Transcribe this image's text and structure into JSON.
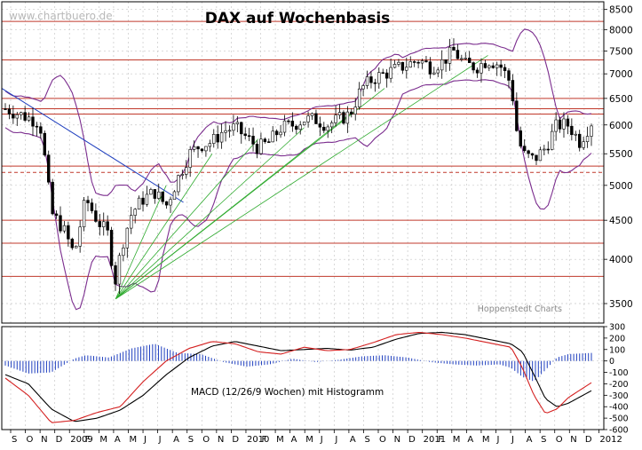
{
  "chart_data": [
    {
      "type": "candlestick",
      "title": "DAX auf Wochenbasis",
      "watermark": "www.chartbuero.de",
      "credit": "Hoppenstedt Charts",
      "y_scale": "log",
      "ylim": [
        3300,
        8700
      ],
      "y_ticks": [
        3500,
        4000,
        4500,
        5000,
        5500,
        6000,
        6500,
        7000,
        7500,
        8000,
        8500
      ],
      "x_labels": [
        "S",
        "O",
        "N",
        "D",
        "2009",
        "F",
        "M",
        "A",
        "M",
        "J",
        "J",
        "A",
        "S",
        "O",
        "N",
        "D",
        "2010",
        "F",
        "M",
        "A",
        "M",
        "J",
        "J",
        "A",
        "S",
        "O",
        "N",
        "D",
        "2011",
        "F",
        "M",
        "A",
        "M",
        "J",
        "J",
        "A",
        "S",
        "O",
        "N",
        "D",
        "2012"
      ],
      "price_anchors": [
        {
          "x": 0,
          "v": 6300
        },
        {
          "x": 3,
          "v": 6050
        },
        {
          "x": 4,
          "v": 4600
        },
        {
          "x": 5,
          "v": 4400
        },
        {
          "x": 6,
          "v": 4050
        },
        {
          "x": 7,
          "v": 4800
        },
        {
          "x": 8,
          "v": 4500
        },
        {
          "x": 9,
          "v": 4300
        },
        {
          "x": 9.5,
          "v": 3700
        },
        {
          "x": 10.2,
          "v": 4200
        },
        {
          "x": 11,
          "v": 4600
        },
        {
          "x": 12,
          "v": 4800
        },
        {
          "x": 13,
          "v": 4900
        },
        {
          "x": 14,
          "v": 4700
        },
        {
          "x": 15,
          "v": 5100
        },
        {
          "x": 16,
          "v": 5500
        },
        {
          "x": 17,
          "v": 5650
        },
        {
          "x": 18,
          "v": 5700
        },
        {
          "x": 19,
          "v": 5900
        },
        {
          "x": 20,
          "v": 5950
        },
        {
          "x": 22,
          "v": 5600
        },
        {
          "x": 23,
          "v": 5700
        },
        {
          "x": 24,
          "v": 5950
        },
        {
          "x": 25,
          "v": 6000
        },
        {
          "x": 26,
          "v": 6100
        },
        {
          "x": 27,
          "v": 6100
        },
        {
          "x": 28,
          "v": 6000
        },
        {
          "x": 29,
          "v": 6100
        },
        {
          "x": 30,
          "v": 6200
        },
        {
          "x": 31,
          "v": 6700
        },
        {
          "x": 32,
          "v": 6900
        },
        {
          "x": 33,
          "v": 7000
        },
        {
          "x": 34,
          "v": 7100
        },
        {
          "x": 35,
          "v": 7200
        },
        {
          "x": 36,
          "v": 7300
        },
        {
          "x": 37,
          "v": 7150
        },
        {
          "x": 38,
          "v": 7250
        },
        {
          "x": 39,
          "v": 7500
        },
        {
          "x": 40,
          "v": 7200
        },
        {
          "x": 41,
          "v": 7150
        },
        {
          "x": 42,
          "v": 7300
        },
        {
          "x": 43,
          "v": 7200
        },
        {
          "x": 44,
          "v": 6800
        },
        {
          "x": 44.5,
          "v": 5900
        },
        {
          "x": 45,
          "v": 5500
        },
        {
          "x": 46,
          "v": 5400
        },
        {
          "x": 47,
          "v": 5600
        },
        {
          "x": 48,
          "v": 6000
        },
        {
          "x": 49,
          "v": 6000
        },
        {
          "x": 50,
          "v": 5700
        },
        {
          "x": 51,
          "v": 6050
        }
      ],
      "horizontal_levels_solid": [
        8200,
        7300,
        6500,
        6300,
        6200,
        5300,
        4500,
        4200,
        3800
      ],
      "horizontal_levels_dashed": [
        5200
      ]
    },
    {
      "type": "line",
      "title": "MACD (12/26/9 Wochen) mit Histogramm",
      "ylim": [
        -600,
        300
      ],
      "y_ticks": [
        300,
        200,
        100,
        0,
        -100,
        -200,
        -300,
        -400,
        -500,
        -600
      ],
      "macd_anchors": [
        {
          "x": 0,
          "v": -150
        },
        {
          "x": 2,
          "v": -300
        },
        {
          "x": 4,
          "v": -540
        },
        {
          "x": 6,
          "v": -520
        },
        {
          "x": 8,
          "v": -450
        },
        {
          "x": 10,
          "v": -400
        },
        {
          "x": 12,
          "v": -180
        },
        {
          "x": 14,
          "v": 0
        },
        {
          "x": 16,
          "v": 110
        },
        {
          "x": 18,
          "v": 170
        },
        {
          "x": 20,
          "v": 150
        },
        {
          "x": 22,
          "v": 80
        },
        {
          "x": 24,
          "v": 60
        },
        {
          "x": 26,
          "v": 120
        },
        {
          "x": 28,
          "v": 90
        },
        {
          "x": 30,
          "v": 100
        },
        {
          "x": 32,
          "v": 160
        },
        {
          "x": 34,
          "v": 230
        },
        {
          "x": 36,
          "v": 250
        },
        {
          "x": 38,
          "v": 230
        },
        {
          "x": 40,
          "v": 200
        },
        {
          "x": 42,
          "v": 160
        },
        {
          "x": 44,
          "v": 120
        },
        {
          "x": 45,
          "v": -60
        },
        {
          "x": 46,
          "v": -300
        },
        {
          "x": 47,
          "v": -460
        },
        {
          "x": 48,
          "v": -420
        },
        {
          "x": 49,
          "v": -320
        },
        {
          "x": 51,
          "v": -190
        }
      ],
      "signal_anchors": [
        {
          "x": 0,
          "v": -120
        },
        {
          "x": 2,
          "v": -200
        },
        {
          "x": 4,
          "v": -420
        },
        {
          "x": 6,
          "v": -530
        },
        {
          "x": 8,
          "v": -500
        },
        {
          "x": 10,
          "v": -430
        },
        {
          "x": 12,
          "v": -300
        },
        {
          "x": 14,
          "v": -120
        },
        {
          "x": 16,
          "v": 30
        },
        {
          "x": 18,
          "v": 130
        },
        {
          "x": 20,
          "v": 170
        },
        {
          "x": 22,
          "v": 130
        },
        {
          "x": 24,
          "v": 90
        },
        {
          "x": 26,
          "v": 100
        },
        {
          "x": 28,
          "v": 110
        },
        {
          "x": 30,
          "v": 95
        },
        {
          "x": 32,
          "v": 120
        },
        {
          "x": 34,
          "v": 190
        },
        {
          "x": 36,
          "v": 240
        },
        {
          "x": 38,
          "v": 250
        },
        {
          "x": 40,
          "v": 230
        },
        {
          "x": 42,
          "v": 190
        },
        {
          "x": 44,
          "v": 150
        },
        {
          "x": 45,
          "v": 80
        },
        {
          "x": 46,
          "v": -120
        },
        {
          "x": 47,
          "v": -330
        },
        {
          "x": 48,
          "v": -400
        },
        {
          "x": 49,
          "v": -370
        },
        {
          "x": 51,
          "v": -260
        }
      ],
      "histogram_anchors": [
        {
          "x": 0,
          "v": -40
        },
        {
          "x": 2,
          "v": -110
        },
        {
          "x": 4,
          "v": -100
        },
        {
          "x": 5,
          "v": -40
        },
        {
          "x": 6,
          "v": 20
        },
        {
          "x": 7,
          "v": 50
        },
        {
          "x": 9,
          "v": 30
        },
        {
          "x": 11,
          "v": 110
        },
        {
          "x": 13,
          "v": 150
        },
        {
          "x": 15,
          "v": 70
        },
        {
          "x": 17,
          "v": 60
        },
        {
          "x": 19,
          "v": -10
        },
        {
          "x": 21,
          "v": -50
        },
        {
          "x": 23,
          "v": -30
        },
        {
          "x": 25,
          "v": 20
        },
        {
          "x": 27,
          "v": -10
        },
        {
          "x": 29,
          "v": 10
        },
        {
          "x": 31,
          "v": 40
        },
        {
          "x": 33,
          "v": 50
        },
        {
          "x": 35,
          "v": 30
        },
        {
          "x": 37,
          "v": -10
        },
        {
          "x": 39,
          "v": -30
        },
        {
          "x": 41,
          "v": -40
        },
        {
          "x": 43,
          "v": -30
        },
        {
          "x": 44,
          "v": -60
        },
        {
          "x": 45,
          "v": -140
        },
        {
          "x": 46,
          "v": -180
        },
        {
          "x": 47,
          "v": -80
        },
        {
          "x": 48,
          "v": 30
        },
        {
          "x": 49,
          "v": 60
        },
        {
          "x": 51,
          "v": 70
        }
      ]
    }
  ]
}
